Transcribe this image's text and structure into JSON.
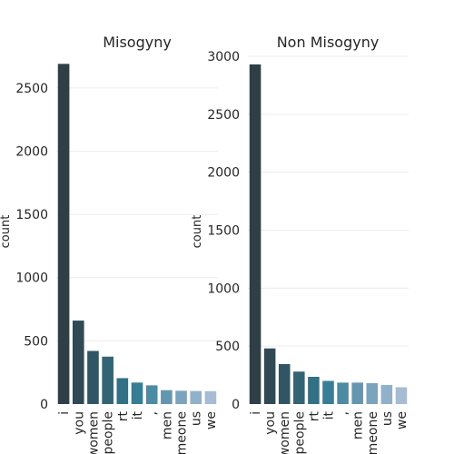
{
  "chart_data": [
    {
      "type": "bar",
      "title": "Misogyny",
      "xlabel": "",
      "ylabel": "count",
      "categories": [
        "i",
        "you",
        "women",
        "people",
        "rt",
        "it",
        ",",
        "men",
        "someone",
        "us",
        "we"
      ],
      "values": [
        2690,
        660,
        420,
        375,
        205,
        170,
        148,
        110,
        105,
        103,
        102
      ],
      "yticks": [
        0,
        500,
        1000,
        1500,
        2000,
        2500
      ],
      "ylim": [
        0,
        2750
      ],
      "grid": true,
      "colors": [
        "#2e3f45",
        "#2f4a55",
        "#305665",
        "#316474",
        "#317186",
        "#367d96",
        "#4b8ba4",
        "#6397b1",
        "#7aa3bd",
        "#91b0c9",
        "#a6bcd5"
      ]
    },
    {
      "type": "bar",
      "title": "Non Misogyny",
      "xlabel": "",
      "ylabel": "count",
      "categories": [
        "i",
        "you",
        "women",
        "people",
        "rt",
        "it",
        ",",
        "men",
        "someone",
        "us",
        "we"
      ],
      "values": [
        2930,
        480,
        345,
        280,
        235,
        200,
        185,
        185,
        180,
        165,
        145
      ],
      "yticks": [
        0,
        500,
        1000,
        1500,
        2000,
        2500,
        3000
      ],
      "ylim": [
        0,
        3000
      ],
      "grid": true,
      "colors": [
        "#2e3f45",
        "#2f4a55",
        "#305665",
        "#316474",
        "#317186",
        "#367d96",
        "#4b8ba4",
        "#6397b1",
        "#7aa3bd",
        "#91b0c9",
        "#a6bcd5"
      ]
    }
  ]
}
